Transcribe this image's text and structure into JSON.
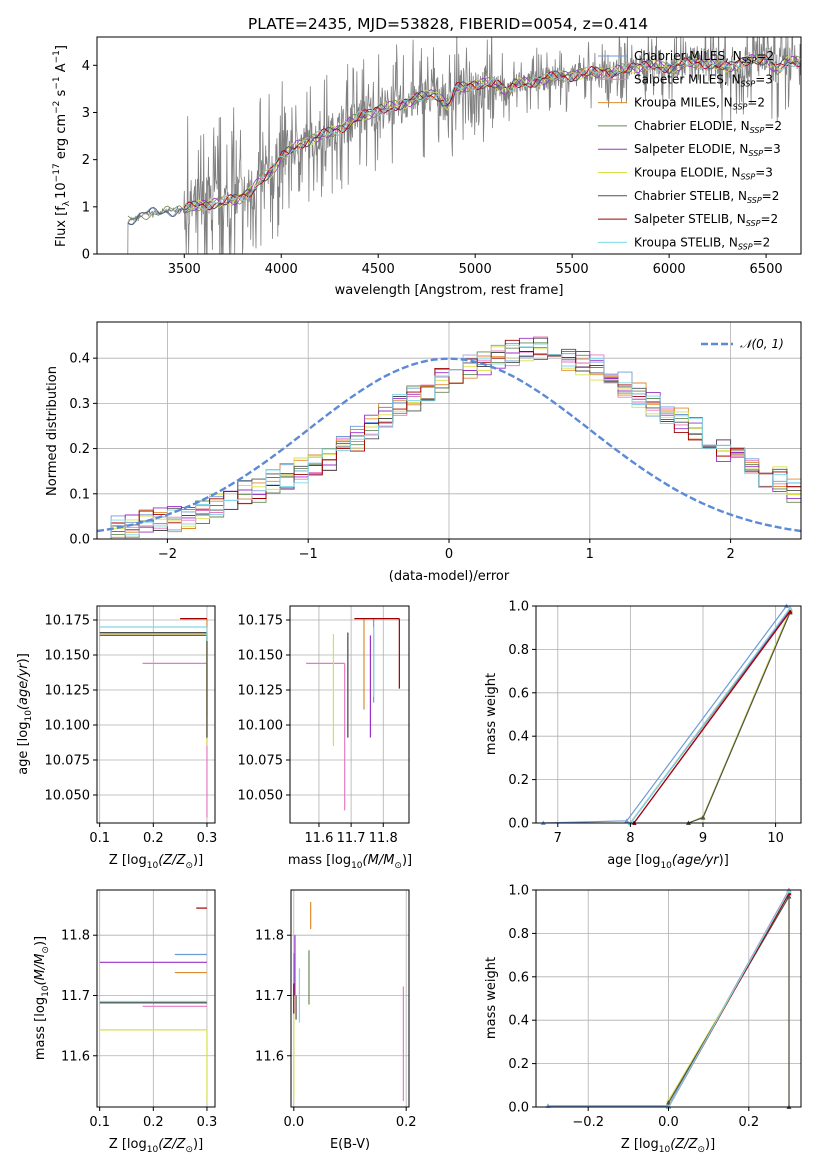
{
  "title": "PLATE=2435, MJD=53828, FIBERID=0054, z=0.414",
  "colors": {
    "observed": "#808080",
    "series": [
      "#6f9bd8",
      "#ff7f0e",
      "#ff7f0e",
      "#7fa06f",
      "#9b30c8",
      "#d6e04c",
      "#505050",
      "#a00000",
      "#7fd7e8"
    ]
  },
  "series": [
    {
      "name": "Chabrier MILES",
      "nssp": "2",
      "color": "#6f9bd8"
    },
    {
      "name": "Salpeter MILES",
      "nssp": "3",
      "color": "#e67ac3"
    },
    {
      "name": "Kroupa MILES",
      "nssp": "2",
      "color": "#e08a30"
    },
    {
      "name": "Chabrier ELODIE",
      "nssp": "2",
      "color": "#6a8a5a"
    },
    {
      "name": "Salpeter ELODIE",
      "nssp": "3",
      "color": "#9b30c8"
    },
    {
      "name": "Kroupa ELODIE",
      "nssp": "3",
      "color": "#d8e04c"
    },
    {
      "name": "Chabrier STELIB",
      "nssp": "2",
      "color": "#505050"
    },
    {
      "name": "Salpeter STELIB",
      "nssp": "2",
      "color": "#a00000"
    },
    {
      "name": "Kroupa STELIB",
      "nssp": "2",
      "color": "#7fd7e8"
    }
  ],
  "chart_data": [
    {
      "id": "spectrum",
      "type": "line",
      "xlabel": "wavelength [Angstrom, rest frame]",
      "ylabel": "Flux [f$_\\lambda$ 10$^{-17}$ erg cm$^{-2}$ s$^{-1}$ A$^{-1}$]",
      "ylabel_parts": {
        "a": "Flux [f",
        "b": "λ",
        "c": "10",
        "d": "−17",
        "e": " erg cm",
        "f": "−2",
        "g": " s",
        "h": "−1",
        "i": " A",
        "j": "−1",
        "k": "]"
      },
      "xlim": [
        3050,
        6680
      ],
      "ylim": [
        0,
        4.6
      ],
      "xticks": [
        3500,
        4000,
        4500,
        5000,
        5500,
        6000,
        6500
      ],
      "yticks": [
        0,
        1,
        2,
        3,
        4
      ],
      "data_range": [
        3210,
        6680
      ],
      "continuum_knots": {
        "x": [
          3210,
          3250,
          3300,
          3400,
          3500,
          3600,
          3700,
          3800,
          3850,
          3900,
          3950,
          4000,
          4100,
          4200,
          4300,
          4400,
          4500,
          4600,
          4700,
          4800,
          4861,
          4900,
          5000,
          5100,
          5175,
          5200,
          5300,
          5400,
          5500,
          5600,
          5700,
          5800,
          5900,
          6000,
          6100,
          6200,
          6300,
          6400,
          6500,
          6563,
          6600,
          6680
        ],
        "y": [
          0.7,
          0.75,
          0.85,
          0.9,
          0.95,
          1.05,
          1.1,
          1.2,
          1.35,
          1.6,
          1.75,
          2.05,
          2.35,
          2.5,
          2.65,
          2.9,
          3.05,
          3.15,
          3.3,
          3.4,
          3.15,
          3.5,
          3.6,
          3.62,
          3.45,
          3.6,
          3.65,
          3.75,
          3.78,
          3.85,
          3.85,
          3.95,
          4.0,
          3.95,
          4.05,
          4.05,
          3.95,
          4.1,
          4.12,
          3.9,
          4.05,
          4.1
        ]
      }
    },
    {
      "id": "residuals",
      "type": "histogram",
      "xlabel": "(data-model)/error",
      "ylabel": "Normed distribution",
      "xlim": [
        -2.5,
        2.5
      ],
      "ylim": [
        0,
        0.48
      ],
      "xticks": [
        -2,
        -1,
        0,
        1,
        2
      ],
      "yticks": [
        0.0,
        0.1,
        0.2,
        0.3,
        0.4
      ],
      "bin_width": 0.1,
      "bin_start": -2.5,
      "reference": "N(0,1)",
      "legend_label": "𝒩(0, 1)",
      "legend_loc": "upper right",
      "seed_heights": [
        0.01,
        0.025,
        0.03,
        0.035,
        0.04,
        0.045,
        0.05,
        0.06,
        0.07,
        0.085,
        0.1,
        0.11,
        0.125,
        0.14,
        0.15,
        0.16,
        0.18,
        0.2,
        0.22,
        0.25,
        0.27,
        0.29,
        0.31,
        0.33,
        0.35,
        0.37,
        0.38,
        0.39,
        0.4,
        0.41,
        0.415,
        0.42,
        0.41,
        0.4,
        0.39,
        0.38,
        0.36,
        0.34,
        0.32,
        0.3,
        0.28,
        0.26,
        0.24,
        0.22,
        0.2,
        0.18,
        0.16,
        0.14,
        0.13,
        0.11
      ]
    },
    {
      "id": "age_vs_Z",
      "type": "errorbar",
      "xlabel": "Z [log$_{10}$(Z/Z$_\\odot$)]",
      "xlabel_text": "Z [log",
      "ylabel": "age  [log$_{10}$(age/yr)]",
      "ylabel_text": "age  [log",
      "xlim": [
        0.095,
        0.315
      ],
      "ylim": [
        10.03,
        10.185
      ],
      "xticks": [
        0.1,
        0.2,
        0.3
      ],
      "yticks": [
        10.05,
        10.075,
        10.1,
        10.125,
        10.15,
        10.175
      ],
      "points": [
        {
          "x": 0.3,
          "y": 10.166,
          "xerr_lo": 0.2,
          "yerr_lo": 0.0
        },
        {
          "x": 0.3,
          "y": 10.144,
          "xerr_lo": 0.12,
          "yerr_lo": 0.11
        },
        {
          "x": 0.3,
          "y": 10.176,
          "xerr_lo": 0.05,
          "yerr_lo": 0.07
        },
        {
          "x": 0.3,
          "y": 10.165,
          "xerr_lo": 0.2,
          "yerr_lo": 0.075
        },
        {
          "x": 0.3,
          "y": 10.164,
          "xerr_lo": 0.2,
          "yerr_lo": 0.0
        },
        {
          "x": 0.3,
          "y": 10.165,
          "xerr_lo": 0.2,
          "yerr_lo": 0.08
        },
        {
          "x": 0.3,
          "y": 10.166,
          "xerr_lo": 0.2,
          "yerr_lo": 0.075
        },
        {
          "x": 0.3,
          "y": 10.176,
          "xerr_lo": 0.05,
          "yerr_lo": 0.0
        },
        {
          "x": 0.3,
          "y": 10.17,
          "xerr_lo": 0.2,
          "yerr_lo": 0.01
        }
      ]
    },
    {
      "id": "age_vs_mass",
      "type": "errorbar",
      "xlabel": "mass [log$_{10}$(M/M$_\\odot$)]",
      "xlabel_text": "mass [log",
      "xlim": [
        11.51,
        11.88
      ],
      "ylim": [
        10.03,
        10.185
      ],
      "xticks": [
        11.6,
        11.7,
        11.8
      ],
      "yticks": [
        10.05,
        10.075,
        10.1,
        10.125,
        10.15,
        10.175
      ],
      "points": [
        {
          "x": 11.77,
          "y": 10.176,
          "xerr_lo": 0.0,
          "yerr_lo": 0.06
        },
        {
          "x": 11.68,
          "y": 10.144,
          "xerr_lo": 0.12,
          "yerr_lo": 0.105
        },
        {
          "x": 11.74,
          "y": 10.176,
          "xerr_lo": 0.0,
          "yerr_lo": 0.065
        },
        {
          "x": 11.69,
          "y": 10.166,
          "xerr_lo": 0.0,
          "yerr_lo": 0.075
        },
        {
          "x": 11.76,
          "y": 10.164,
          "xerr_lo": 0.0,
          "yerr_lo": 0.073
        },
        {
          "x": 11.645,
          "y": 10.165,
          "xerr_lo": 0.0,
          "yerr_lo": 0.08
        },
        {
          "x": 11.69,
          "y": 10.166,
          "xerr_lo": 0.0,
          "yerr_lo": 0.075
        },
        {
          "x": 11.85,
          "y": 10.176,
          "xerr_lo": 0.14,
          "yerr_lo": 0.05
        },
        {
          "x": 11.77,
          "y": 10.17,
          "xerr_lo": 0.0,
          "yerr_lo": 0.05
        }
      ]
    },
    {
      "id": "mass_weight_vs_age",
      "type": "line",
      "xlabel": "age  [log$_{10}$(age/yr)]",
      "xlabel_text": "age  [log",
      "ylabel": "mass weight",
      "xlim": [
        6.7,
        10.35
      ],
      "ylim": [
        0,
        1.0
      ],
      "xticks": [
        7,
        8,
        9,
        10
      ],
      "yticks": [
        0.0,
        0.2,
        0.4,
        0.6,
        0.8,
        1.0
      ],
      "curves": [
        {
          "x": [
            6.8,
            7.95,
            10.15
          ],
          "y": [
            0.0,
            0.01,
            1.0
          ]
        },
        {
          "x": [
            8.0,
            10.2
          ],
          "y": [
            0.0,
            0.99
          ]
        },
        {
          "x": [
            8.0,
            10.2
          ],
          "y": [
            0.0,
            0.98
          ]
        },
        {
          "x": [
            8.0,
            10.2
          ],
          "y": [
            0.0,
            0.985
          ]
        },
        {
          "x": [
            8.05,
            10.2
          ],
          "y": [
            0.0,
            0.98
          ]
        },
        {
          "x": [
            8.8,
            9.0,
            10.2
          ],
          "y": [
            0.0,
            0.03,
            0.98
          ]
        },
        {
          "x": [
            8.8,
            9.0,
            10.2
          ],
          "y": [
            0.0,
            0.025,
            0.97
          ]
        },
        {
          "x": [
            8.05,
            10.2
          ],
          "y": [
            0.0,
            0.975
          ]
        },
        {
          "x": [
            8.0,
            10.2
          ],
          "y": [
            0.0,
            0.99
          ]
        }
      ]
    },
    {
      "id": "mass_vs_Z",
      "type": "errorbar",
      "xlabel": "Z [log$_{10}$(Z/Z$_\\odot$)]",
      "xlabel_text": "Z [log",
      "ylabel": "mass [log$_{10}$(M/M$_\\odot$)]",
      "ylabel_text": "mass [log",
      "xlim": [
        0.095,
        0.315
      ],
      "ylim": [
        11.515,
        11.875
      ],
      "xticks": [
        0.1,
        0.2,
        0.3
      ],
      "yticks": [
        11.6,
        11.7,
        11.8
      ],
      "points": [
        {
          "x": 0.3,
          "y": 11.768,
          "xerr_lo": 0.06,
          "yerr_lo": 0.0
        },
        {
          "x": 0.3,
          "y": 11.682,
          "xerr_lo": 0.12,
          "yerr_lo": 0.0
        },
        {
          "x": 0.3,
          "y": 11.738,
          "xerr_lo": 0.06,
          "yerr_lo": 0.0
        },
        {
          "x": 0.3,
          "y": 11.688,
          "xerr_lo": 0.2,
          "yerr_lo": 0.0
        },
        {
          "x": 0.3,
          "y": 11.755,
          "xerr_lo": 0.2,
          "yerr_lo": 0.0
        },
        {
          "x": 0.3,
          "y": 11.643,
          "xerr_lo": 0.2,
          "yerr_lo": 0.12
        },
        {
          "x": 0.3,
          "y": 11.688,
          "xerr_lo": 0.2,
          "yerr_lo": 0.0
        },
        {
          "x": 0.3,
          "y": 11.845,
          "xerr_lo": 0.02,
          "yerr_lo": 0.0
        },
        {
          "x": 0.3,
          "y": 11.69,
          "xerr_lo": 0.2,
          "yerr_lo": 0.0
        }
      ]
    },
    {
      "id": "mass_vs_ebv",
      "type": "errorbar",
      "xlabel": "E(B-V)",
      "xlim": [
        -0.005,
        0.205
      ],
      "ylim": [
        11.515,
        11.875
      ],
      "xticks": [
        0.0,
        0.2
      ],
      "yticks": [
        11.6,
        11.7,
        11.8
      ],
      "points": [
        {
          "x": 0.0,
          "y": 11.77,
          "yerr_lo": 0.1
        },
        {
          "x": 0.195,
          "y": 11.715,
          "yerr_lo": 0.19
        },
        {
          "x": 0.03,
          "y": 11.855,
          "yerr_lo": 0.045
        },
        {
          "x": 0.027,
          "y": 11.775,
          "yerr_lo": 0.09
        },
        {
          "x": 0.002,
          "y": 11.8,
          "yerr_lo": 0.1
        },
        {
          "x": 0.0,
          "y": 11.7,
          "yerr_lo": 0.17
        },
        {
          "x": 0.004,
          "y": 11.7,
          "yerr_lo": 0.04
        },
        {
          "x": 0.0,
          "y": 11.72,
          "yerr_lo": 0.05
        },
        {
          "x": 0.01,
          "y": 11.745,
          "yerr_lo": 0.09
        }
      ]
    },
    {
      "id": "mass_weight_vs_Z",
      "type": "line",
      "xlabel": "Z [log$_{10}$(Z/Z$_\\odot$)]",
      "xlabel_text": "Z [log",
      "ylabel": "mass weight",
      "xlim": [
        -0.33,
        0.33
      ],
      "ylim": [
        0,
        1.0
      ],
      "xticks": [
        -0.2,
        0.0,
        0.2
      ],
      "yticks": [
        0.0,
        0.2,
        0.4,
        0.6,
        0.8,
        1.0
      ],
      "curves": [
        {
          "x": [
            -0.3,
            0.0,
            0.3
          ],
          "y": [
            0.005,
            0.005,
            1.0
          ]
        },
        {
          "x": [
            0.0,
            0.3
          ],
          "y": [
            0.0,
            1.0
          ]
        },
        {
          "x": [
            0.0,
            0.3
          ],
          "y": [
            0.0,
            0.99
          ]
        },
        {
          "x": [
            0.0,
            0.3
          ],
          "y": [
            0.0,
            0.995
          ]
        },
        {
          "x": [
            0.0,
            0.3
          ],
          "y": [
            0.0,
            0.99
          ]
        },
        {
          "x": [
            0.0,
            0.3,
            0.3
          ],
          "y": [
            0.03,
            0.97,
            0.0
          ]
        },
        {
          "x": [
            0.0,
            0.3,
            0.3
          ],
          "y": [
            0.02,
            0.97,
            0.0
          ]
        },
        {
          "x": [
            0.0,
            0.3
          ],
          "y": [
            0.0,
            0.985
          ]
        },
        {
          "x": [
            0.0,
            0.3
          ],
          "y": [
            0.0,
            0.995
          ]
        }
      ]
    }
  ]
}
